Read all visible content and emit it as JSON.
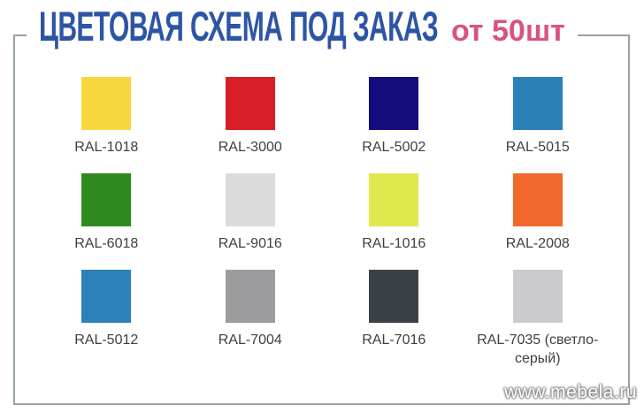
{
  "header": {
    "title": "ЦВЕТОВАЯ СХЕМА ПОД ЗАКАЗ",
    "subtitle": "от 50шт",
    "title_color": "#2D55A5",
    "subtitle_color": "#D9537F"
  },
  "frame": {
    "border_color": "#96A2A9"
  },
  "watermark": {
    "text": "www.mebela.ru"
  },
  "swatches": [
    {
      "label": "RAL-1018",
      "color": "#F7D83C"
    },
    {
      "label": "RAL-3000",
      "color": "#D81E26"
    },
    {
      "label": "RAL-5002",
      "color": "#150C7D"
    },
    {
      "label": "RAL-5015",
      "color": "#2B80B8"
    },
    {
      "label": "RAL-6018",
      "color": "#2F8A1E"
    },
    {
      "label": "RAL-9016",
      "color": "#DBDBDC"
    },
    {
      "label": "RAL-1016",
      "color": "#DFE94D"
    },
    {
      "label": "RAL-2008",
      "color": "#F2672C"
    },
    {
      "label": "RAL-5012",
      "color": "#2C81BA"
    },
    {
      "label": "RAL-7004",
      "color": "#9C9C9E"
    },
    {
      "label": "RAL-7016",
      "color": "#3A4147"
    },
    {
      "label": "RAL-7035 (светло-серый)",
      "color": "#CBCACE"
    }
  ]
}
